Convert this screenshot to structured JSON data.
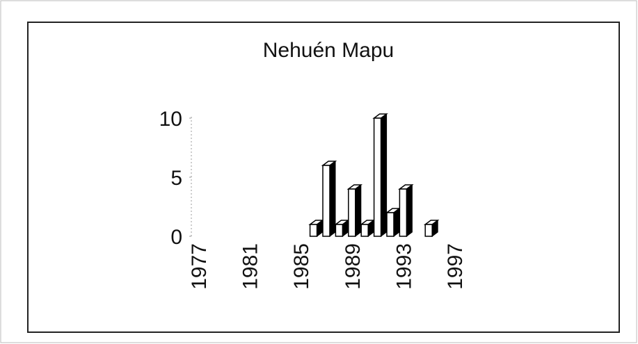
{
  "chart_data": {
    "type": "bar3d",
    "title": "Nehuén Mapu",
    "categories": [
      "1977",
      null,
      null,
      null,
      "1981",
      null,
      null,
      null,
      "1985",
      null,
      null,
      null,
      "1989",
      null,
      null,
      null,
      "1993",
      null,
      null,
      null,
      "1997"
    ],
    "values": [
      0,
      0,
      0,
      0,
      0,
      0,
      0,
      0,
      0,
      1,
      6,
      1,
      4,
      1,
      10,
      2,
      4,
      0,
      1,
      0,
      0
    ],
    "color": "#ffffff",
    "ylim": [
      0,
      10
    ],
    "yticks": [
      0,
      5,
      10
    ],
    "grid": false
  }
}
